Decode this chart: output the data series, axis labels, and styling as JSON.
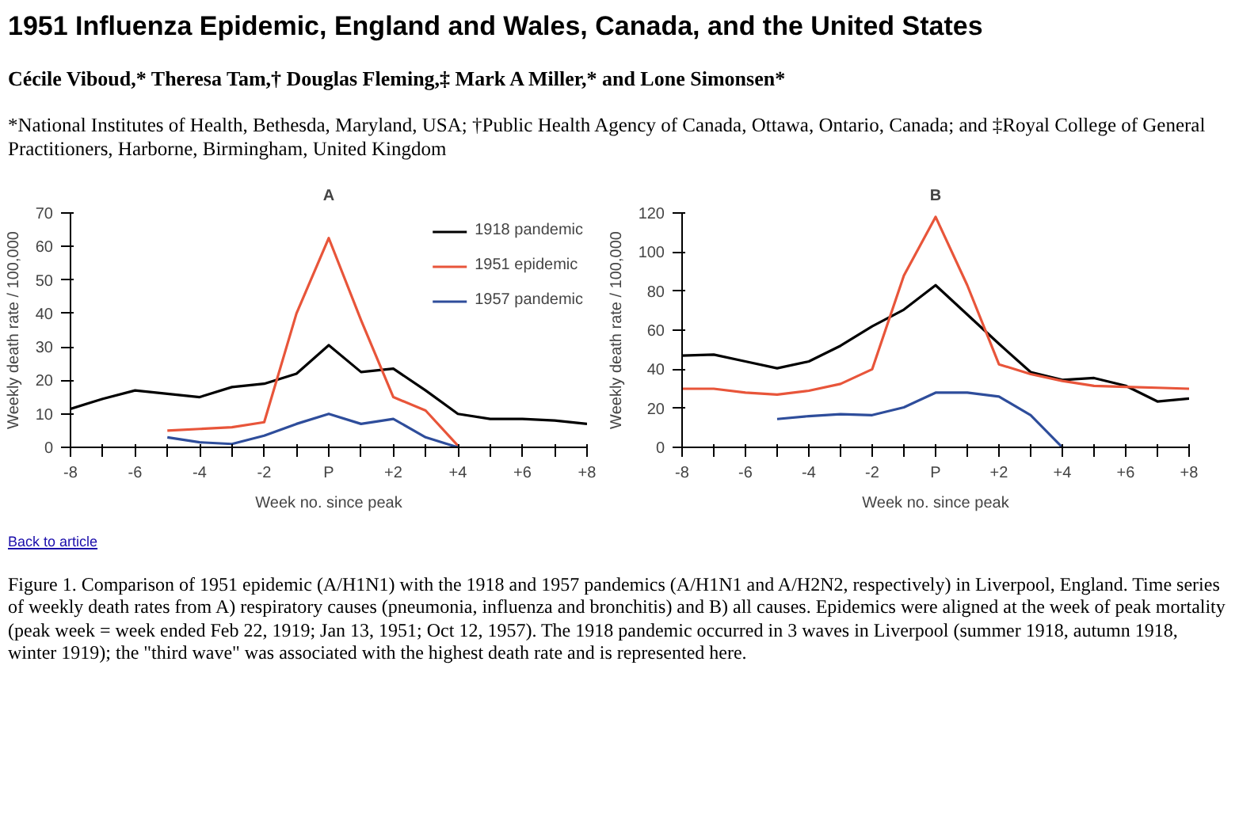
{
  "chart_data": [
    {
      "type": "line",
      "title": "A",
      "xlabel": "Week no. since peak",
      "ylabel": "Weekly death rate / 100,000",
      "x": [
        -8,
        -7,
        -6,
        -5,
        -4,
        -3,
        -2,
        -1,
        0,
        1,
        2,
        3,
        4,
        5,
        6,
        7,
        8
      ],
      "series": [
        {
          "name": "1918 pandemic",
          "color": "#000000",
          "values": [
            11.5,
            14.5,
            17,
            16,
            15,
            18,
            19,
            22,
            30.5,
            22.5,
            23.5,
            17,
            10,
            8.5,
            8.5,
            8,
            7
          ]
        },
        {
          "name": "1951 epidemic",
          "color": "#e8553a",
          "values": [
            null,
            null,
            null,
            5,
            5.5,
            6,
            7.5,
            40,
            62.5,
            38,
            15,
            11,
            0.5,
            null,
            null,
            null,
            null
          ]
        },
        {
          "name": "1957 pandemic",
          "color": "#2e4d9b",
          "values": [
            null,
            null,
            null,
            3,
            1.5,
            1,
            3.5,
            7,
            10,
            7,
            8.5,
            3,
            0,
            null,
            null,
            null,
            null
          ]
        }
      ],
      "xlim": [
        -8,
        8
      ],
      "ylim": [
        0,
        70
      ],
      "xticks": [
        -8,
        {
          "value": -7,
          "label": null
        },
        -6,
        {
          "value": -5,
          "label": null
        },
        -4,
        {
          "value": -3,
          "label": null
        },
        -2,
        {
          "value": -1,
          "label": null
        },
        {
          "value": 0,
          "label": "P"
        },
        {
          "value": 1,
          "label": null
        },
        {
          "value": 2,
          "label": "+2"
        },
        {
          "value": 3,
          "label": null
        },
        {
          "value": 4,
          "label": "+4"
        },
        {
          "value": 5,
          "label": null
        },
        {
          "value": 6,
          "label": "+6"
        },
        {
          "value": 7,
          "label": null
        },
        {
          "value": 8,
          "label": "+8"
        }
      ],
      "yticks": [
        0,
        10,
        20,
        30,
        40,
        50,
        60,
        70
      ],
      "legend": "top right",
      "grid": false,
      "marker": "none",
      "line_style": "solid",
      "annotations": [
        "1951 Influenza Epidemic, England and Wales, Canada, and the United States",
        "Cécile Viboud,* Theresa Tam,† Douglas Fleming,‡ Mark A Miller,* and Lone Simonsen*",
        "*National Institutes of Health, Bethesda, Maryland, USA; †Public Health Agency of Canada, Ottawa, Ontario, Canada; and ‡Royal College of General Practitioners, Harborne, Birmingham, United Kingdom"
      ]
    },
    {
      "type": "line",
      "title": "B",
      "xlabel": "Week no. since peak",
      "ylabel": "Weekly death rate / 100,000",
      "x": [
        -8,
        -7,
        -6,
        -5,
        -4,
        -3,
        -2,
        -1,
        0,
        1,
        2,
        3,
        4,
        5,
        6,
        7,
        8
      ],
      "series": [
        {
          "color": "#000000",
          "values": [
            47,
            47.5,
            44,
            40.5,
            44,
            52,
            62,
            70.5,
            83,
            68,
            53,
            38.5,
            34.5,
            35.5,
            31.5,
            23.5,
            25
          ]
        },
        {
          "color": "#e8553a",
          "values": [
            30,
            30,
            28,
            27,
            29,
            32.5,
            40,
            88,
            118,
            83,
            42.5,
            37.5,
            34,
            31.5,
            31,
            30.5,
            30
          ]
        },
        {
          "color": "#2e4d9b",
          "values": [
            null,
            null,
            null,
            14.5,
            16,
            17,
            16.5,
            20.5,
            28,
            28,
            26,
            16.5,
            0,
            null,
            null,
            null,
            null
          ]
        }
      ],
      "xlim": [
        -8,
        8
      ],
      "ylim": [
        0,
        120
      ],
      "xticks": [
        -8,
        {
          "value": -7,
          "label": null
        },
        -6,
        {
          "value": -5,
          "label": null
        },
        -4,
        {
          "value": -3,
          "label": null
        },
        -2,
        {
          "value": -1,
          "label": null
        },
        {
          "value": 0,
          "label": "P"
        },
        {
          "value": 1,
          "label": null
        },
        {
          "value": 2,
          "label": "+2"
        },
        {
          "value": 3,
          "label": null
        },
        {
          "value": 4,
          "label": "+4"
        },
        {
          "value": 5,
          "label": null
        },
        {
          "value": 6,
          "label": "+6"
        },
        {
          "value": 7,
          "label": null
        },
        {
          "value": 8,
          "label": "+8"
        }
      ],
      "yticks": [
        0,
        20,
        40,
        60,
        80,
        100,
        120
      ],
      "grid": false,
      "marker": "none",
      "line_style": "solid",
      "annotations": [
        "Back to article",
        "Figure 1. Comparison of 1951 epidemic (A/H1N1) with the 1918 and 1957 pandemics (A/H1N1 and A/H2N2, respectively) in Liverpool, England. Time series of weekly death rates from A) respiratory causes (pneumonia, influenza and bronchitis) and B) all causes. Epidemics were aligned at the week of peak mortality (peak week = week ended Feb 22, 1919; Jan 13, 1951; Oct 12, 1957). The 1918 pandemic occurred in 3 waves in Liverpool (summer 1918, autumn 1918, winter 1919); the \"third wave\" was associated with the highest death rate and is represented here."
      ]
    }
  ]
}
